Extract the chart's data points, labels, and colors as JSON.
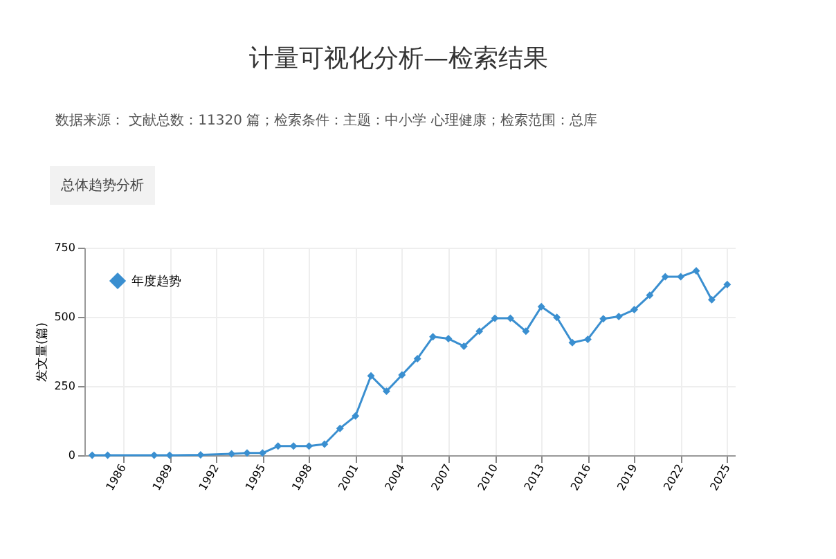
{
  "chart_data": {
    "type": "line",
    "title": "计量可视化分析—检索结果",
    "subtitle": "数据来源：  文献总数：11320 篇；检索条件：主题：中小学 心理健康；检索范围：总库",
    "annotations": [
      "总体趋势分析"
    ],
    "ylabel": "发文量(篇)",
    "x": [
      1984,
      1985,
      1988,
      1989,
      1991,
      1993,
      1994,
      1995,
      1996,
      1997,
      1998,
      1999,
      2000,
      2001,
      2002,
      2003,
      2004,
      2005,
      2006,
      2007,
      2008,
      2009,
      2010,
      2011,
      2012,
      2013,
      2014,
      2015,
      2016,
      2017,
      2018,
      2019,
      2020,
      2021,
      2022,
      2023,
      2024,
      2025
    ],
    "series": [
      {
        "name": "年度趋势",
        "color": "#3a8fd0",
        "values": [
          0,
          0,
          0,
          0,
          1,
          5,
          8,
          8,
          33,
          33,
          33,
          40,
          97,
          142,
          287,
          231,
          290,
          349,
          428,
          421,
          394,
          448,
          495,
          495,
          448,
          537,
          498,
          407,
          419,
          493,
          501,
          526,
          578,
          645,
          645,
          666,
          562,
          617
        ]
      }
    ],
    "xlim": [
      1983.5,
      2025.5
    ],
    "xticks": [
      1986,
      1989,
      1992,
      1995,
      1998,
      2001,
      2004,
      2007,
      2010,
      2013,
      2016,
      2019,
      2022,
      2025
    ],
    "ylim": [
      0,
      750
    ],
    "yticks": [
      0,
      250,
      500,
      750
    ],
    "grid": true,
    "legend": "top left",
    "marker": "diamond",
    "line_style": "solid"
  }
}
